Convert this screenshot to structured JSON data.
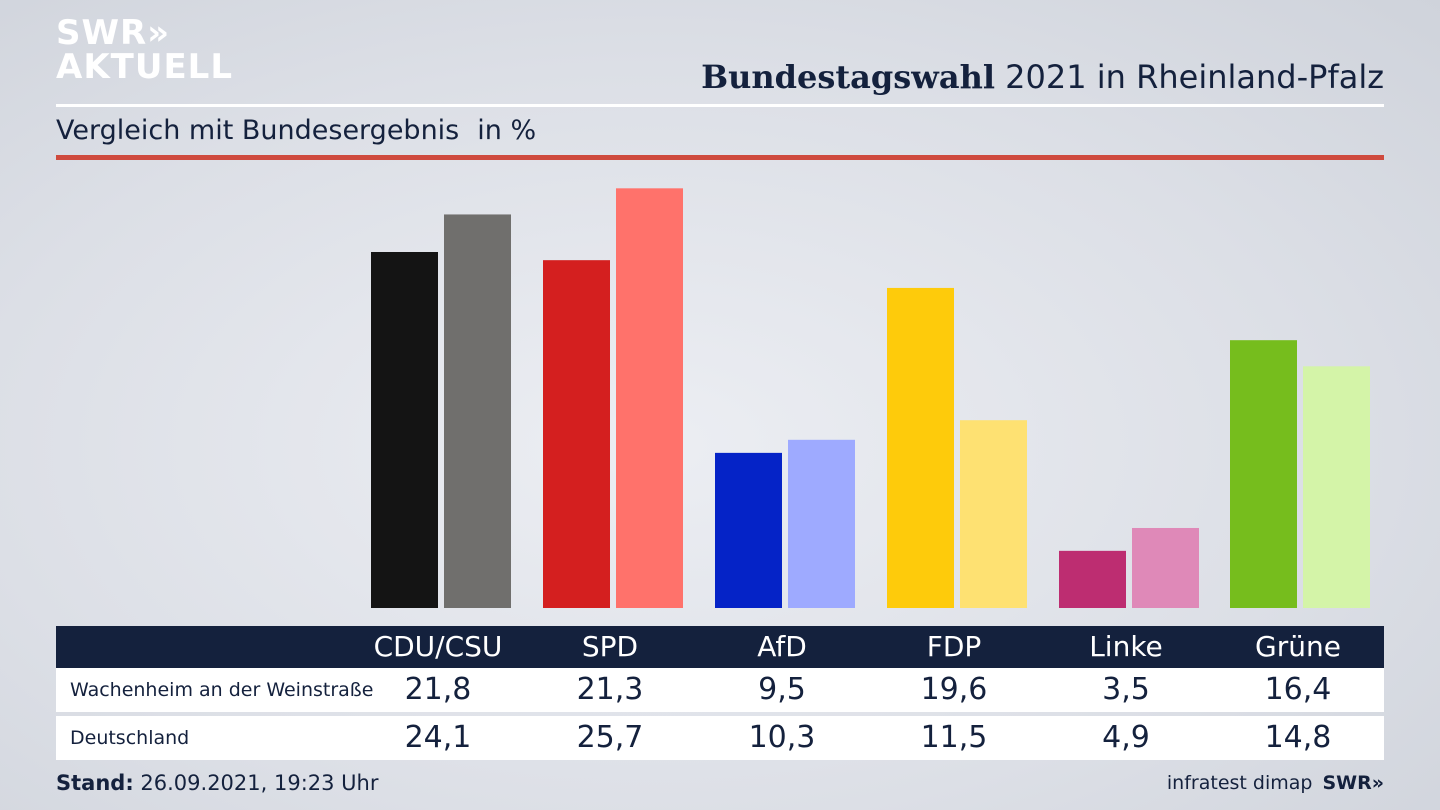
{
  "logo": {
    "line1": "SWR»",
    "line2": "AKTUELL"
  },
  "header": {
    "title_bold": "Bundestagswahl",
    "title_rest": " 2021 in Rheinland-Pfalz",
    "subtitle": "Vergleich mit Bundesergebnis",
    "unit": "in %"
  },
  "colors": {
    "navy": "#14213d",
    "accent_red": "#cf4a3e"
  },
  "chart_data": {
    "type": "bar",
    "categories": [
      "CDU/CSU",
      "SPD",
      "AfD",
      "FDP",
      "Linke",
      "Grüne"
    ],
    "series": [
      {
        "name": "Wachenheim an der Weinstraße",
        "values": [
          21.8,
          21.3,
          9.5,
          19.6,
          3.5,
          16.4
        ],
        "colors": [
          "#141414",
          "#d41f1f",
          "#0523c7",
          "#fecb0b",
          "#bd2d71",
          "#76bd1d"
        ]
      },
      {
        "name": "Deutschland",
        "values": [
          24.1,
          25.7,
          10.3,
          11.5,
          4.9,
          14.8
        ],
        "colors": [
          "#706f6d",
          "#ff726b",
          "#9eaaff",
          "#fee172",
          "#df89b8",
          "#d4f4a8"
        ]
      }
    ],
    "display_values": [
      [
        "21,8",
        "21,3",
        "9,5",
        "19,6",
        "3,5",
        "16,4"
      ],
      [
        "24,1",
        "25,7",
        "10,3",
        "11,5",
        "4,9",
        "14,8"
      ]
    ],
    "ylim": [
      0,
      26
    ],
    "grid": false,
    "legend": "table-below"
  },
  "footer": {
    "stand_label": "Stand:",
    "stand_value": " 26.09.2021, 19:23 Uhr",
    "source": "infratest dimap",
    "brand": "SWR»"
  }
}
